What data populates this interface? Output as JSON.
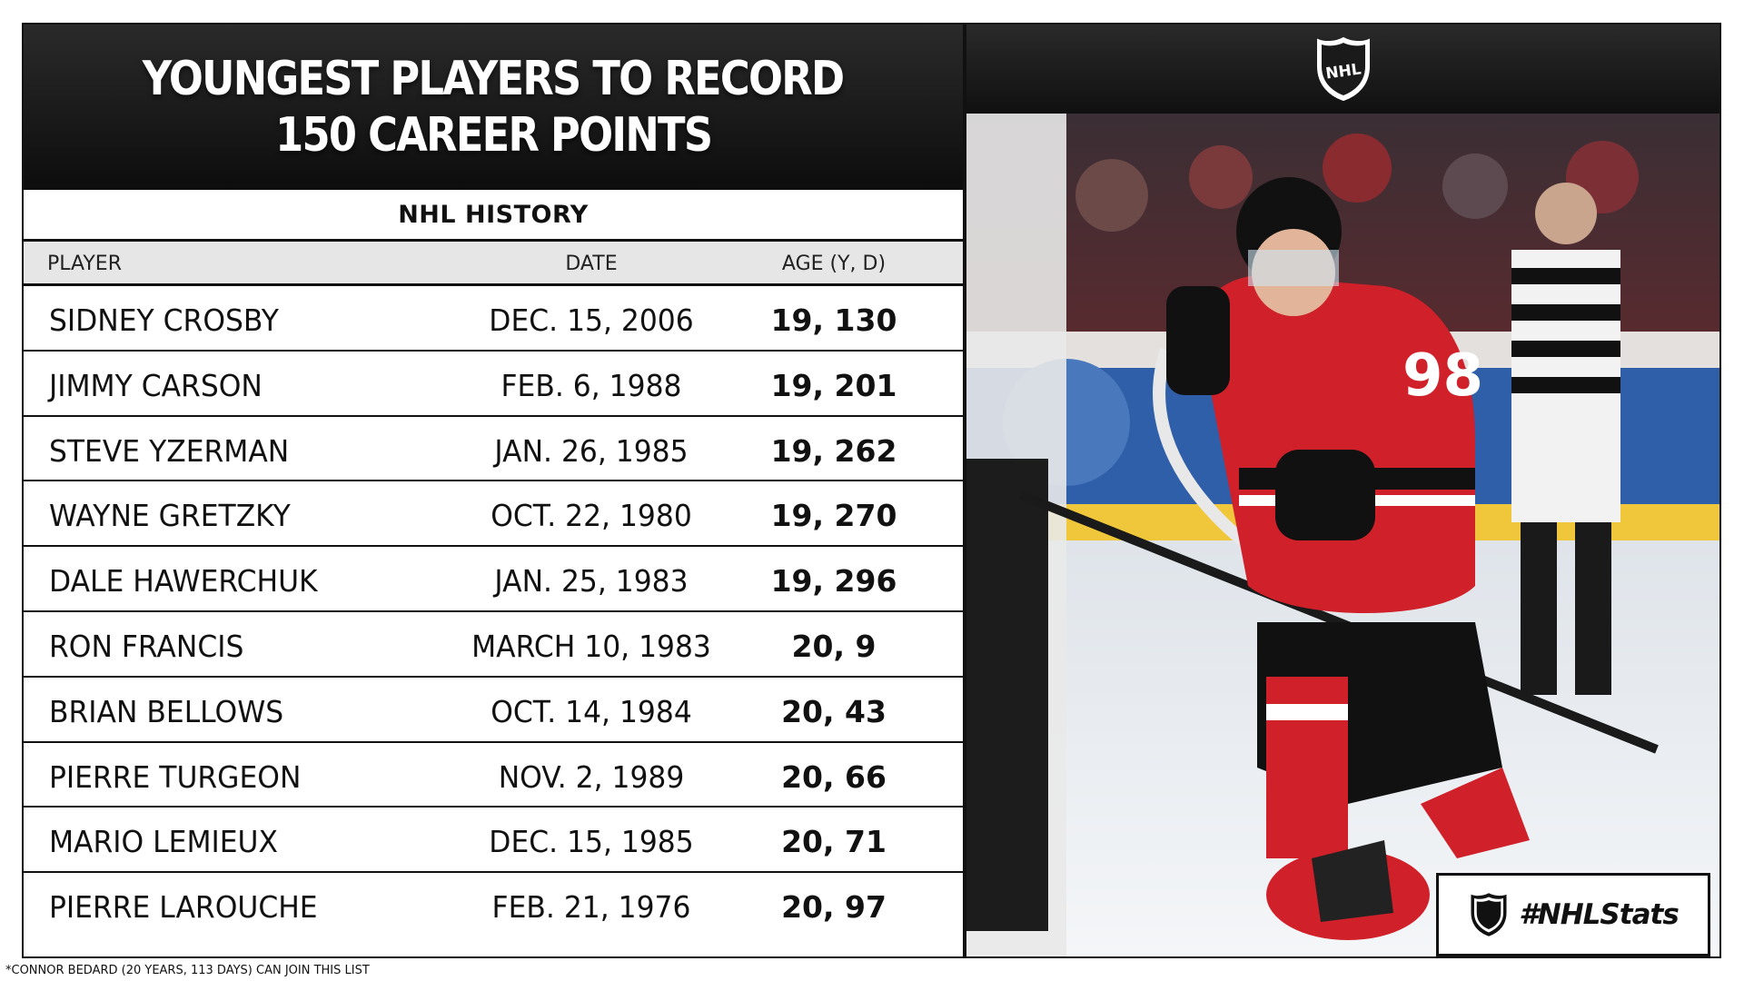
{
  "title": {
    "line1": "YOUNGEST PLAYERS TO RECORD",
    "line2": "150 CAREER POINTS"
  },
  "section_title": "NHL HISTORY",
  "columns": {
    "player": "PLAYER",
    "date": "DATE",
    "age": "AGE (Y, D)"
  },
  "rows": [
    {
      "player": "SIDNEY CROSBY",
      "date": "DEC. 15, 2006",
      "age": "19, 130"
    },
    {
      "player": "JIMMY CARSON",
      "date": "FEB. 6, 1988",
      "age": "19, 201"
    },
    {
      "player": "STEVE YZERMAN",
      "date": "JAN. 26, 1985",
      "age": "19, 262"
    },
    {
      "player": "WAYNE GRETZKY",
      "date": "OCT. 22, 1980",
      "age": "19, 270"
    },
    {
      "player": "DALE HAWERCHUK",
      "date": "JAN. 25, 1983",
      "age": "19, 296"
    },
    {
      "player": "RON FRANCIS",
      "date": "MARCH 10, 1983",
      "age": "20, 9"
    },
    {
      "player": "BRIAN BELLOWS",
      "date": "OCT. 14, 1984",
      "age": "20, 43"
    },
    {
      "player": "PIERRE TURGEON",
      "date": "NOV. 2, 1989",
      "age": "20, 66"
    },
    {
      "player": "MARIO LEMIEUX",
      "date": "DEC. 15, 1985",
      "age": "20, 71"
    },
    {
      "player": "PIERRE LAROUCHE",
      "date": "FEB. 21, 1976",
      "age": "20, 97"
    }
  ],
  "footnote": "*CONNOR BEDARD (20 YEARS, 113 DAYS) CAN JOIN THIS LIST",
  "logo_text": "NHL",
  "hashtag": "#NHLStats",
  "photo": {
    "jersey_number": "98"
  },
  "colors": {
    "jersey_red": "#d0202a",
    "panel_dark": "#111111",
    "header_gray": "#e6e6e6"
  },
  "icons": {
    "league_logo": "nhl-shield-icon"
  }
}
